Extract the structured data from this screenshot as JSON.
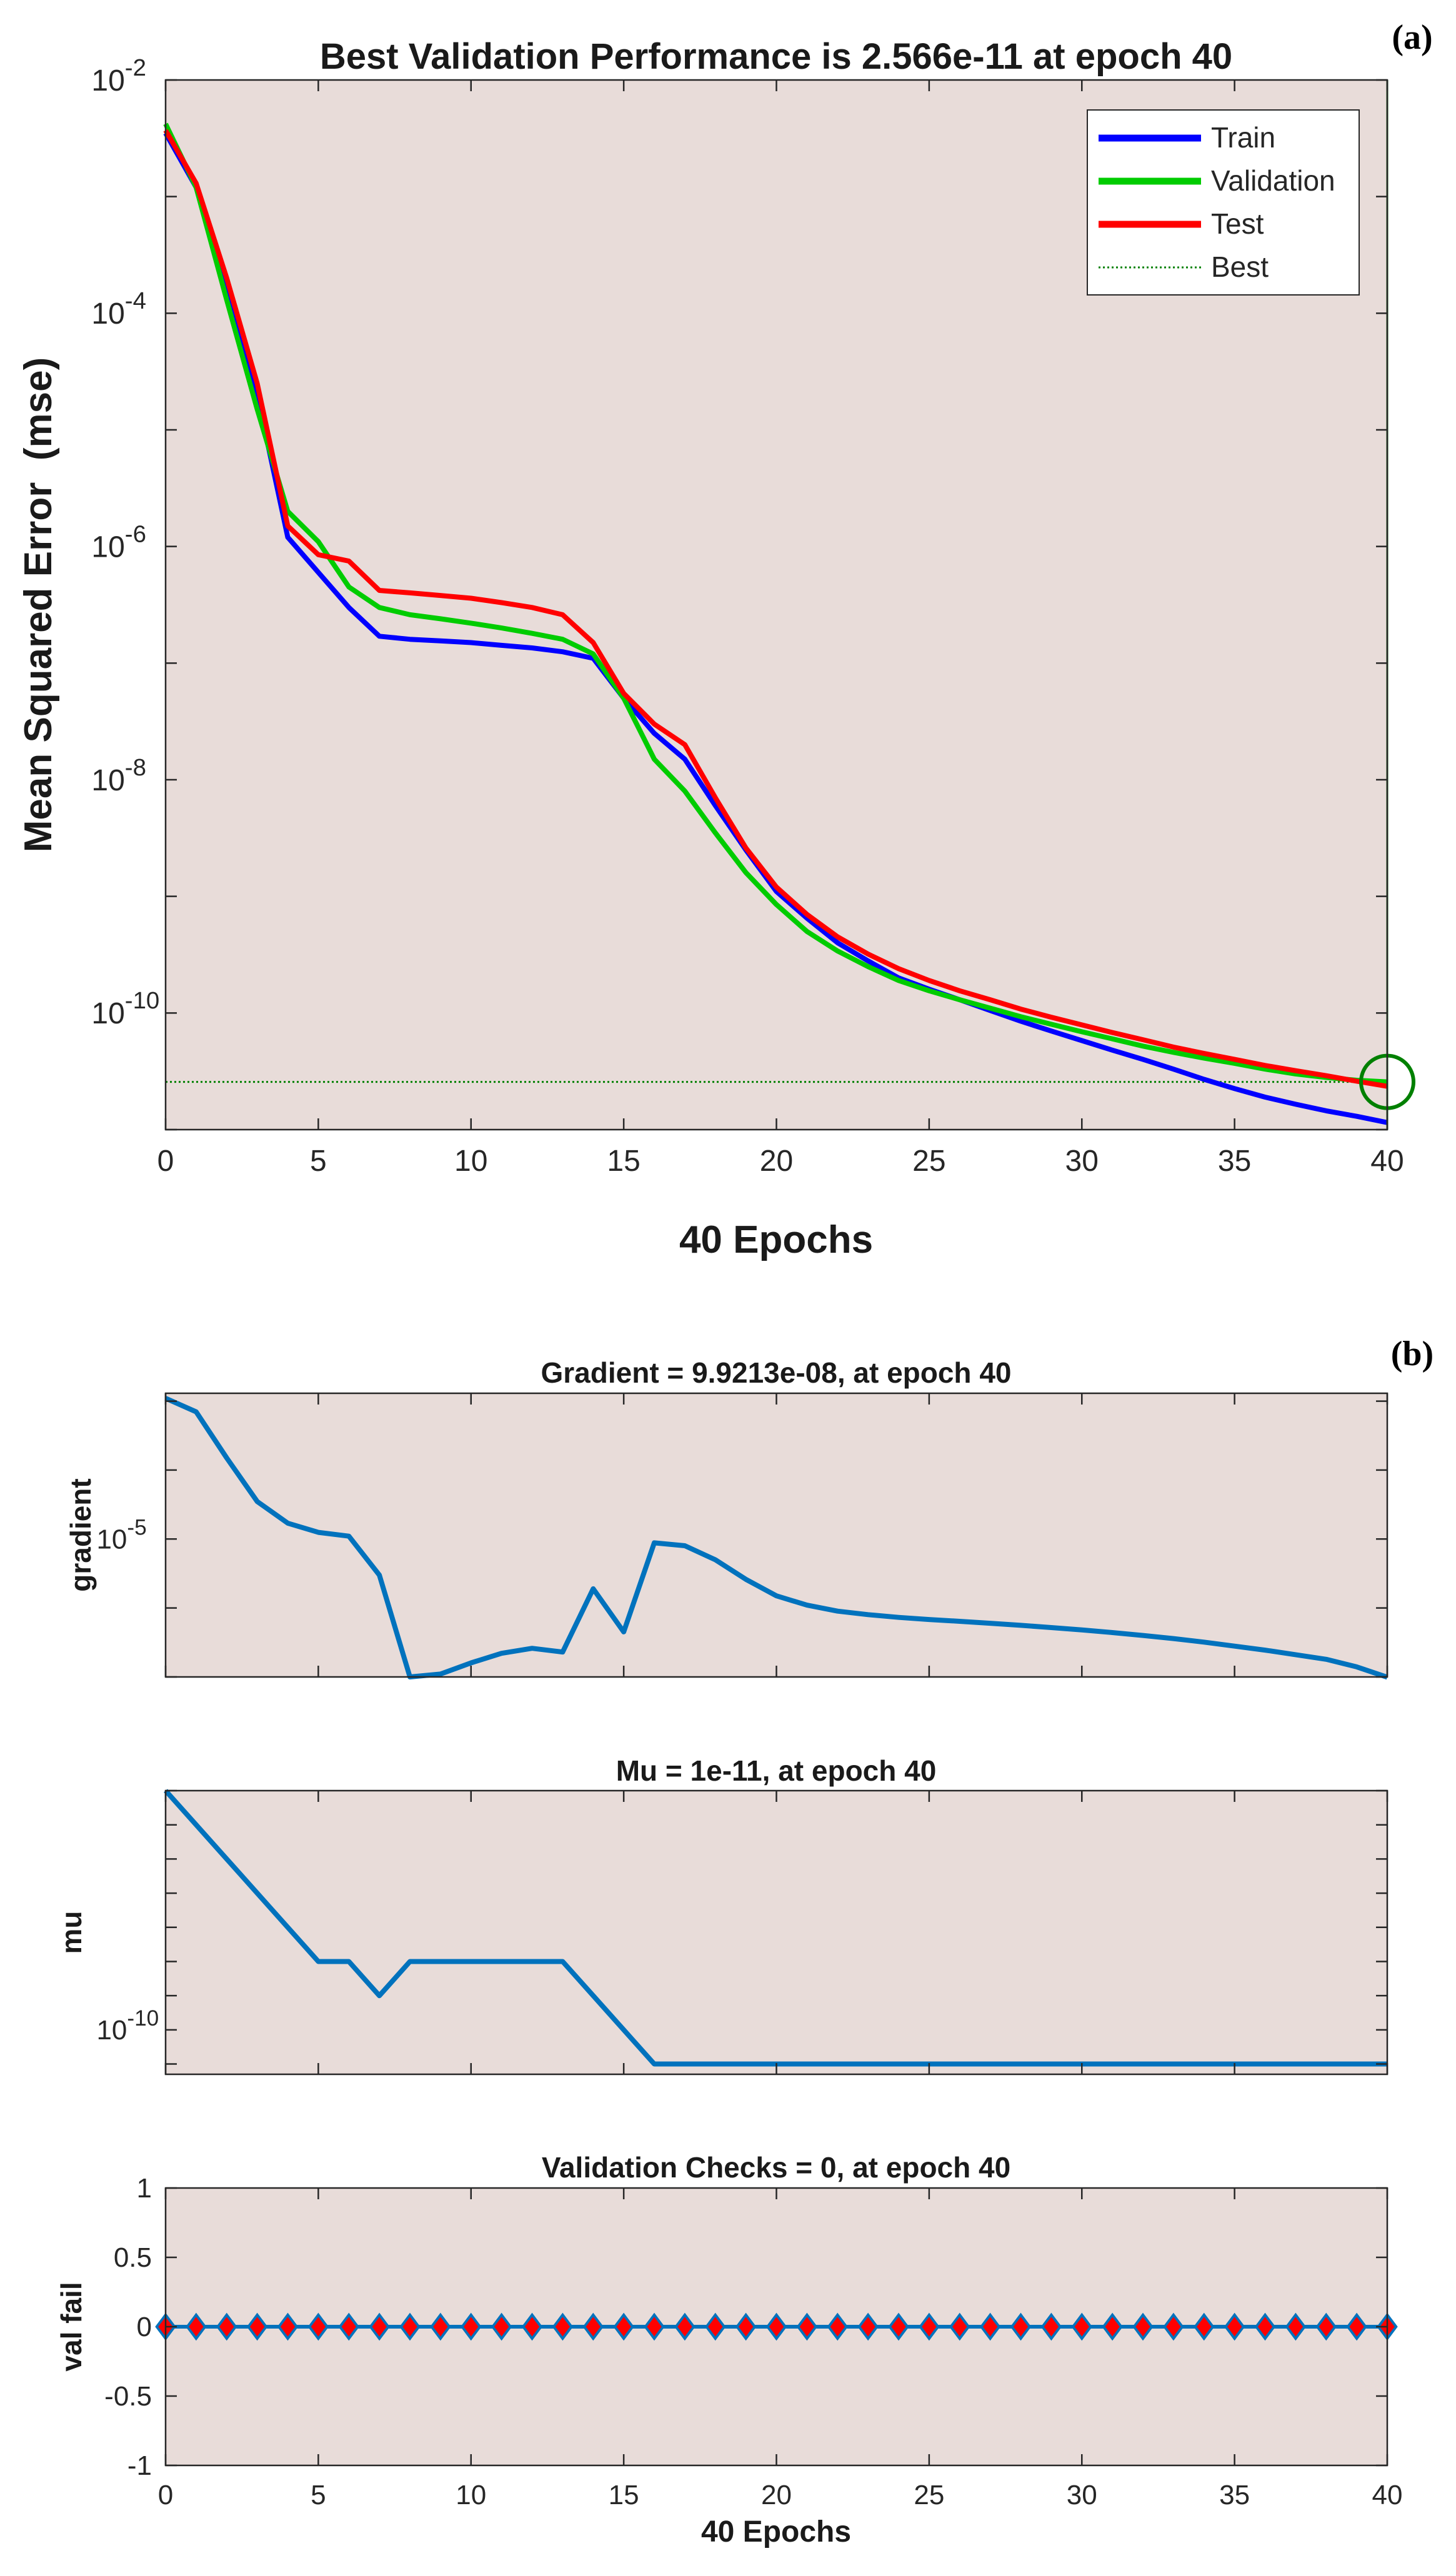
{
  "chart_data": [
    {
      "type": "line",
      "panel_label": "(a)",
      "title": "Best Validation Performance is 2.566e-11 at epoch 40",
      "xlabel": "40 Epochs",
      "ylabel": "Mean Squared Error  (mse)",
      "yscale": "log",
      "xlim": [
        0,
        40
      ],
      "ylim": [
        1e-11,
        0.01
      ],
      "xticks": [
        "0",
        "5",
        "10",
        "15",
        "20",
        "25",
        "30",
        "35",
        "40"
      ],
      "yticks": [
        {
          "base": "10",
          "exp": "-10"
        },
        {
          "base": "10",
          "exp": "-8"
        },
        {
          "base": "10",
          "exp": "-6"
        },
        {
          "base": "10",
          "exp": "-4"
        },
        {
          "base": "10",
          "exp": "-2"
        }
      ],
      "legend_position": "top-right",
      "series": [
        {
          "name": "Train",
          "color": "#0000ff",
          "x": [
            0,
            1,
            2,
            3,
            4,
            5,
            6,
            7,
            8,
            9,
            10,
            11,
            12,
            13,
            14,
            15,
            16,
            17,
            18,
            19,
            20,
            21,
            22,
            23,
            24,
            25,
            26,
            27,
            28,
            29,
            30,
            31,
            32,
            33,
            34,
            35,
            36,
            37,
            38,
            39,
            40
          ],
          "y": [
            0.0035,
            0.0012,
            0.00015,
            2e-05,
            1.2e-06,
            6e-07,
            3e-07,
            1.7e-07,
            1.6e-07,
            1.55e-07,
            1.5e-07,
            1.42e-07,
            1.35e-07,
            1.25e-07,
            1.1e-07,
            5e-08,
            2.5e-08,
            1.5e-08,
            6e-09,
            2.5e-09,
            1.1e-09,
            6.5e-10,
            4e-10,
            2.8e-10,
            2e-10,
            1.6e-10,
            1.3e-10,
            1.05e-10,
            8.5e-11,
            7e-11,
            5.8e-11,
            4.8e-11,
            4e-11,
            3.3e-11,
            2.7e-11,
            2.25e-11,
            1.9e-11,
            1.65e-11,
            1.45e-11,
            1.3e-11,
            1.15e-11
          ]
        },
        {
          "name": "Validation",
          "color": "#00cc00",
          "x": [
            0,
            1,
            2,
            3,
            4,
            5,
            6,
            7,
            8,
            9,
            10,
            11,
            12,
            13,
            14,
            15,
            16,
            17,
            18,
            19,
            20,
            21,
            22,
            23,
            24,
            25,
            26,
            27,
            28,
            29,
            30,
            31,
            32,
            33,
            34,
            35,
            36,
            37,
            38,
            39,
            40
          ],
          "y": [
            0.0042,
            0.0012,
            0.00013,
            1.5e-05,
            2e-06,
            1.1e-06,
            4.5e-07,
            3e-07,
            2.6e-07,
            2.4e-07,
            2.2e-07,
            2e-07,
            1.8e-07,
            1.6e-07,
            1.2e-07,
            5e-08,
            1.5e-08,
            8e-09,
            3.5e-09,
            1.6e-09,
            8.5e-10,
            5e-10,
            3.4e-10,
            2.5e-10,
            1.9e-10,
            1.55e-10,
            1.3e-10,
            1.1e-10,
            9.3e-11,
            8e-11,
            6.9e-11,
            6e-11,
            5.2e-11,
            4.6e-11,
            4.1e-11,
            3.7e-11,
            3.3e-11,
            3e-11,
            2.8e-11,
            2.65e-11,
            2.566e-11
          ]
        },
        {
          "name": "Test",
          "color": "#ff0000",
          "x": [
            0,
            1,
            2,
            3,
            4,
            5,
            6,
            7,
            8,
            9,
            10,
            11,
            12,
            13,
            14,
            15,
            16,
            17,
            18,
            19,
            20,
            21,
            22,
            23,
            24,
            25,
            26,
            27,
            28,
            29,
            30,
            31,
            32,
            33,
            34,
            35,
            36,
            37,
            38,
            39,
            40
          ],
          "y": [
            0.0037,
            0.0013,
            0.0002,
            2.5e-05,
            1.5e-06,
            8.5e-07,
            7.5e-07,
            4.2e-07,
            4e-07,
            3.8e-07,
            3.6e-07,
            3.3e-07,
            3e-07,
            2.6e-07,
            1.5e-07,
            5.5e-08,
            3e-08,
            2e-08,
            7e-09,
            2.6e-09,
            1.2e-09,
            7e-10,
            4.5e-10,
            3.2e-10,
            2.4e-10,
            1.9e-10,
            1.55e-10,
            1.3e-10,
            1.08e-10,
            9.2e-11,
            7.9e-11,
            6.8e-11,
            5.9e-11,
            5.1e-11,
            4.5e-11,
            4e-11,
            3.55e-11,
            3.2e-11,
            2.9e-11,
            2.6e-11,
            2.35e-11
          ]
        },
        {
          "name": "Best",
          "color": "#008000",
          "style": "dotted",
          "x": [
            0,
            40
          ],
          "y": [
            2.566e-11,
            2.566e-11
          ]
        }
      ],
      "best_marker": {
        "x": 40,
        "y": 2.566e-11,
        "color": "#008000"
      }
    },
    {
      "type": "line",
      "panel_label": "(b)",
      "title": "Gradient = 9.9213e-08, at epoch 40",
      "xlabel": "",
      "ylabel": "gradient",
      "yscale": "log",
      "xlim": [
        0,
        40
      ],
      "ylim": [
        1e-07,
        0.0013
      ],
      "yticks": [
        {
          "base": "10",
          "exp": "-5"
        }
      ],
      "series": [
        {
          "name": "gradient",
          "color": "#0072bd",
          "x": [
            0,
            1,
            2,
            3,
            4,
            5,
            6,
            7,
            8,
            9,
            10,
            11,
            12,
            13,
            14,
            15,
            16,
            17,
            18,
            19,
            20,
            21,
            22,
            23,
            24,
            25,
            26,
            27,
            28,
            29,
            30,
            31,
            32,
            33,
            34,
            35,
            36,
            37,
            38,
            39,
            40
          ],
          "y": [
            0.0011,
            0.0007,
            0.00015,
            3.5e-05,
            1.7e-05,
            1.25e-05,
            1.1e-05,
            3e-06,
            1e-07,
            1.1e-07,
            1.6e-07,
            2.2e-07,
            2.6e-07,
            2.3e-07,
            1.9e-06,
            4.5e-07,
            8.8e-06,
            8e-06,
            5e-06,
            2.6e-06,
            1.5e-06,
            1.1e-06,
            9e-07,
            8e-07,
            7.3e-07,
            6.8e-07,
            6.4e-07,
            6e-07,
            5.6e-07,
            5.2e-07,
            4.8e-07,
            4.4e-07,
            4e-07,
            3.6e-07,
            3.2e-07,
            2.8e-07,
            2.45e-07,
            2.1e-07,
            1.8e-07,
            1.4e-07,
            9.9213e-08
          ]
        }
      ]
    },
    {
      "type": "line",
      "title": "Mu = 1e-11, at epoch 40",
      "xlabel": "",
      "ylabel": "mu",
      "yscale": "log",
      "xlim": [
        0,
        40
      ],
      "ylim": [
        5e-12,
        0.001
      ],
      "yticks": [
        {
          "base": "10",
          "exp": "-10"
        }
      ],
      "series": [
        {
          "name": "mu",
          "color": "#0072bd",
          "x": [
            0,
            1,
            2,
            3,
            4,
            5,
            6,
            7,
            8,
            9,
            10,
            11,
            12,
            13,
            14,
            15,
            16,
            17,
            18,
            19,
            20,
            21,
            22,
            23,
            24,
            25,
            26,
            27,
            28,
            29,
            30,
            31,
            32,
            33,
            34,
            35,
            36,
            37,
            38,
            39,
            40
          ],
          "y": [
            0.001,
            0.0001,
            1e-05,
            1e-06,
            1e-07,
            1e-08,
            1e-08,
            1e-09,
            1e-08,
            1e-08,
            1e-08,
            1e-08,
            1e-08,
            1e-08,
            1e-09,
            1e-10,
            1e-11,
            1e-11,
            1e-11,
            1e-11,
            1e-11,
            1e-11,
            1e-11,
            1e-11,
            1e-11,
            1e-11,
            1e-11,
            1e-11,
            1e-11,
            1e-11,
            1e-11,
            1e-11,
            1e-11,
            1e-11,
            1e-11,
            1e-11,
            1e-11,
            1e-11,
            1e-11,
            1e-11,
            1e-11
          ]
        }
      ]
    },
    {
      "type": "line",
      "title": "Validation Checks = 0, at epoch 40",
      "xlabel": "40 Epochs",
      "ylabel": "val fail",
      "yscale": "linear",
      "xlim": [
        0,
        40
      ],
      "ylim": [
        -1,
        1
      ],
      "xticks": [
        "0",
        "5",
        "10",
        "15",
        "20",
        "25",
        "30",
        "35",
        "40"
      ],
      "yticks": [
        "1",
        "0.5",
        "0",
        "-0.5",
        "-1"
      ],
      "series": [
        {
          "name": "val fail",
          "color": "#0072bd",
          "marker": "diamond",
          "marker_face": "#ff0000",
          "x": [
            0,
            1,
            2,
            3,
            4,
            5,
            6,
            7,
            8,
            9,
            10,
            11,
            12,
            13,
            14,
            15,
            16,
            17,
            18,
            19,
            20,
            21,
            22,
            23,
            24,
            25,
            26,
            27,
            28,
            29,
            30,
            31,
            32,
            33,
            34,
            35,
            36,
            37,
            38,
            39,
            40
          ],
          "y": [
            0,
            0,
            0,
            0,
            0,
            0,
            0,
            0,
            0,
            0,
            0,
            0,
            0,
            0,
            0,
            0,
            0,
            0,
            0,
            0,
            0,
            0,
            0,
            0,
            0,
            0,
            0,
            0,
            0,
            0,
            0,
            0,
            0,
            0,
            0,
            0,
            0,
            0,
            0,
            0,
            0
          ]
        }
      ]
    }
  ]
}
